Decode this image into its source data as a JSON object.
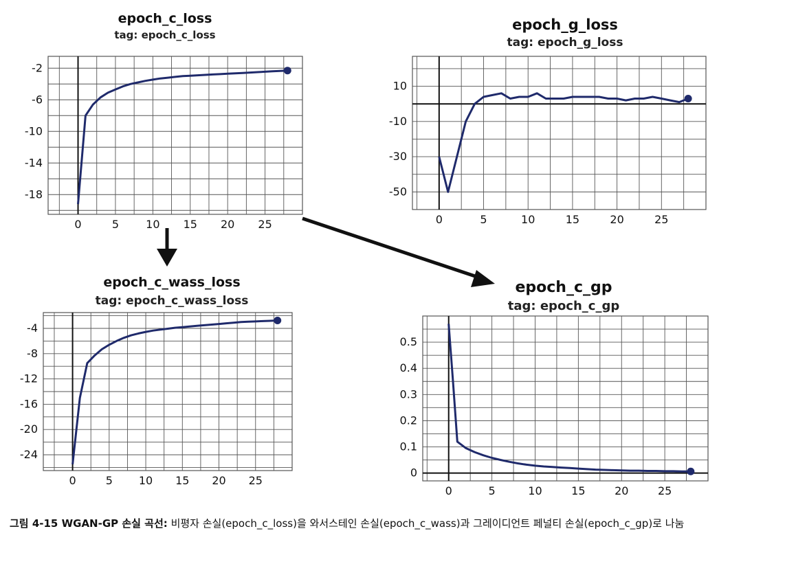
{
  "chart_data": [
    {
      "id": "c_loss",
      "type": "line",
      "title": "epoch_c_loss",
      "subtitle": "tag: epoch_c_loss",
      "x": [
        0,
        1,
        2,
        3,
        4,
        5,
        6,
        7,
        8,
        9,
        10,
        11,
        12,
        13,
        14,
        15,
        16,
        17,
        18,
        19,
        20,
        21,
        22,
        23,
        24,
        25,
        26,
        27,
        28
      ],
      "y": [
        -19.2,
        -8.0,
        -6.6,
        -5.7,
        -5.1,
        -4.7,
        -4.3,
        -4.0,
        -3.8,
        -3.6,
        -3.45,
        -3.3,
        -3.2,
        -3.1,
        -3.0,
        -2.95,
        -2.9,
        -2.85,
        -2.8,
        -2.75,
        -2.7,
        -2.65,
        -2.6,
        -2.55,
        -2.5,
        -2.45,
        -2.4,
        -2.35,
        -2.3
      ],
      "xticks": [
        0,
        5,
        10,
        15,
        20,
        25
      ],
      "yticks": [
        -2,
        -6,
        -10,
        -14,
        -18
      ],
      "xlim": [
        -4,
        30
      ],
      "ylim": [
        -20.5,
        -0.5
      ],
      "grid": true
    },
    {
      "id": "g_loss",
      "type": "line",
      "title": "epoch_g_loss",
      "subtitle": "tag: epoch_g_loss",
      "x": [
        0,
        1,
        2,
        3,
        4,
        5,
        6,
        7,
        8,
        9,
        10,
        11,
        12,
        13,
        14,
        15,
        16,
        17,
        18,
        19,
        20,
        21,
        22,
        23,
        24,
        25,
        26,
        27,
        28
      ],
      "y": [
        -30,
        -50,
        -30,
        -10,
        0,
        4,
        5,
        6,
        3,
        4,
        4,
        6,
        3,
        3,
        3,
        4,
        4,
        4,
        4,
        3,
        3,
        2,
        3,
        3,
        4,
        3,
        2,
        1,
        3
      ],
      "xticks": [
        0,
        5,
        10,
        15,
        20,
        25
      ],
      "yticks": [
        10,
        -10,
        -30,
        -50
      ],
      "xlim": [
        -3,
        30
      ],
      "ylim": [
        -60,
        27
      ],
      "grid": true
    },
    {
      "id": "c_wass_loss",
      "type": "line",
      "title": "epoch_c_wass_loss",
      "subtitle": "tag: epoch_c_wass_loss",
      "x": [
        0,
        1,
        2,
        3,
        4,
        5,
        6,
        7,
        8,
        9,
        10,
        11,
        12,
        13,
        14,
        15,
        16,
        17,
        18,
        19,
        20,
        21,
        22,
        23,
        24,
        25,
        26,
        27,
        28
      ],
      "y": [
        -25.5,
        -15.0,
        -9.5,
        -8.3,
        -7.3,
        -6.6,
        -6.0,
        -5.5,
        -5.1,
        -4.8,
        -4.55,
        -4.35,
        -4.2,
        -4.05,
        -3.9,
        -3.8,
        -3.7,
        -3.6,
        -3.5,
        -3.4,
        -3.3,
        -3.2,
        -3.1,
        -3.0,
        -2.95,
        -2.9,
        -2.85,
        -2.8,
        -2.75
      ],
      "xticks": [
        0,
        5,
        10,
        15,
        20,
        25
      ],
      "yticks": [
        -4,
        -8,
        -12,
        -16,
        -20,
        -24
      ],
      "xlim": [
        -4,
        30
      ],
      "ylim": [
        -26.5,
        -1.5
      ],
      "grid": true
    },
    {
      "id": "c_gp",
      "type": "line",
      "title": "epoch_c_gp",
      "subtitle": "tag: epoch_c_gp",
      "x": [
        0,
        0.5,
        1,
        2,
        3,
        4,
        5,
        6,
        7,
        8,
        9,
        10,
        11,
        12,
        13,
        14,
        15,
        16,
        17,
        18,
        19,
        20,
        21,
        22,
        23,
        24,
        25,
        26,
        27,
        28
      ],
      "y": [
        0.57,
        0.35,
        0.12,
        0.095,
        0.08,
        0.068,
        0.058,
        0.05,
        0.043,
        0.037,
        0.032,
        0.028,
        0.025,
        0.023,
        0.021,
        0.019,
        0.017,
        0.015,
        0.013,
        0.012,
        0.011,
        0.01,
        0.009,
        0.009,
        0.008,
        0.008,
        0.007,
        0.007,
        0.006,
        0.006
      ],
      "xticks": [
        0,
        5,
        10,
        15,
        20,
        25
      ],
      "yticks": [
        0.5,
        0.4,
        0.3,
        0.2,
        0.1,
        0
      ],
      "ytick_labels": [
        "0.5",
        "0.4",
        "0.3",
        "0.2",
        "0.1",
        "0"
      ],
      "xlim": [
        -3,
        30
      ],
      "ylim": [
        -0.03,
        0.6
      ],
      "grid": true
    }
  ],
  "caption": {
    "figure_label": "그림 4-15 WGAN-GP 손실 곡선:",
    "text": "비평자 손실(epoch_c_loss)을 와서스테인 손실(epoch_c_wass)과 그레이디언트 페널티 손실(epoch_c_gp)로 나눔"
  },
  "colors": {
    "line": "#1f2a6b",
    "grid": "#555555",
    "arrow": "#111111"
  }
}
